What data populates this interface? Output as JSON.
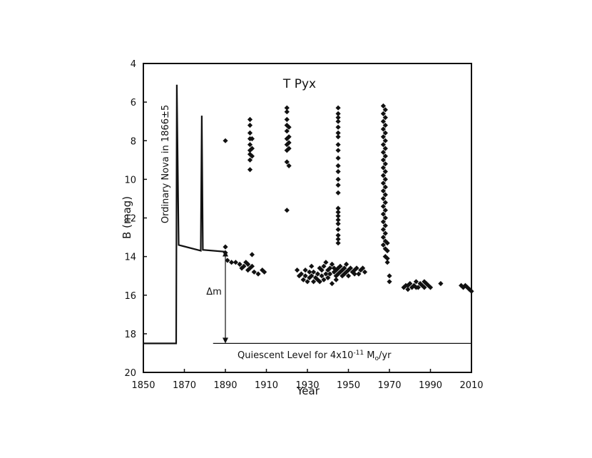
{
  "chart_data": {
    "type": "scatter",
    "title": "T Pyx",
    "xlabel": "Year",
    "ylabel": "B (mag)",
    "xlim": [
      1850,
      2010
    ],
    "ylim": [
      20,
      4
    ],
    "y_inverted": true,
    "grid": false,
    "x_ticks": [
      1850,
      1870,
      1890,
      1910,
      1930,
      1950,
      1970,
      1990,
      2010
    ],
    "y_ticks": [
      4,
      6,
      8,
      10,
      12,
      14,
      16,
      18,
      20
    ],
    "marker_color": "#111111",
    "annotations": {
      "vertical_note": "Ordinary Nova in 1866±5",
      "delta_label": "Δm",
      "quiescent_prefix": "Quiescent Level for 4x10",
      "quiescent_exp": "-11",
      "quiescent_mid": " M",
      "quiescent_sub": "o",
      "quiescent_suffix": "/yr"
    },
    "quiescent_level": 18.5,
    "quiescent_range": [
      1884,
      2010
    ],
    "delta_m_arrow": {
      "x": 1890,
      "y_top": 13.7,
      "y_bottom": 18.5
    },
    "model_curve": [
      [
        1850,
        18.5
      ],
      [
        1866,
        18.5
      ],
      [
        1866.3,
        5.1
      ],
      [
        1867.2,
        13.4
      ],
      [
        1878,
        13.7
      ],
      [
        1878.5,
        6.7
      ],
      [
        1879,
        13.65
      ],
      [
        1890,
        13.75
      ]
    ],
    "points": [
      [
        1890,
        8.0
      ],
      [
        1890,
        13.5
      ],
      [
        1890,
        13.8
      ],
      [
        1891,
        14.2
      ],
      [
        1893,
        14.3
      ],
      [
        1895,
        14.3
      ],
      [
        1897,
        14.4
      ],
      [
        1898,
        14.6
      ],
      [
        1899,
        14.5
      ],
      [
        1900,
        14.3
      ],
      [
        1901,
        14.4
      ],
      [
        1901,
        14.7
      ],
      [
        1902,
        14.6
      ],
      [
        1903,
        14.5
      ],
      [
        1904,
        14.8
      ],
      [
        1906,
        14.9
      ],
      [
        1908,
        14.7
      ],
      [
        1909,
        14.8
      ],
      [
        1902,
        6.9
      ],
      [
        1902,
        7.2
      ],
      [
        1902,
        7.6
      ],
      [
        1902,
        7.9
      ],
      [
        1902,
        8.2
      ],
      [
        1902,
        8.5
      ],
      [
        1902,
        8.7
      ],
      [
        1902,
        9.0
      ],
      [
        1902,
        9.5
      ],
      [
        1903,
        7.9
      ],
      [
        1903,
        8.4
      ],
      [
        1903,
        8.8
      ],
      [
        1903,
        13.9
      ],
      [
        1920,
        6.3
      ],
      [
        1920,
        6.5
      ],
      [
        1920,
        6.9
      ],
      [
        1920,
        7.2
      ],
      [
        1920,
        7.5
      ],
      [
        1920,
        7.9
      ],
      [
        1920,
        8.2
      ],
      [
        1920,
        8.5
      ],
      [
        1920,
        9.1
      ],
      [
        1920,
        11.6
      ],
      [
        1921,
        7.3
      ],
      [
        1921,
        7.8
      ],
      [
        1921,
        8.1
      ],
      [
        1921,
        8.4
      ],
      [
        1921,
        9.3
      ],
      [
        1945,
        6.3
      ],
      [
        1945,
        6.6
      ],
      [
        1945,
        6.8
      ],
      [
        1945,
        7.0
      ],
      [
        1945,
        7.3
      ],
      [
        1945,
        7.6
      ],
      [
        1945,
        7.8
      ],
      [
        1945,
        8.2
      ],
      [
        1945,
        8.5
      ],
      [
        1945,
        8.9
      ],
      [
        1945,
        9.3
      ],
      [
        1945,
        9.6
      ],
      [
        1945,
        10.0
      ],
      [
        1945,
        10.3
      ],
      [
        1945,
        10.7
      ],
      [
        1945,
        11.5
      ],
      [
        1945,
        11.7
      ],
      [
        1945,
        11.9
      ],
      [
        1945,
        12.1
      ],
      [
        1945,
        12.3
      ],
      [
        1945,
        12.6
      ],
      [
        1945,
        12.9
      ],
      [
        1945,
        13.1
      ],
      [
        1945,
        13.3
      ],
      [
        1925,
        14.7
      ],
      [
        1926,
        15.0
      ],
      [
        1927,
        14.9
      ],
      [
        1928,
        15.2
      ],
      [
        1929,
        14.7
      ],
      [
        1929,
        15.0
      ],
      [
        1930,
        15.3
      ],
      [
        1931,
        14.8
      ],
      [
        1931,
        15.1
      ],
      [
        1932,
        15.0
      ],
      [
        1933,
        14.8
      ],
      [
        1933,
        15.3
      ],
      [
        1934,
        15.1
      ],
      [
        1935,
        14.9
      ],
      [
        1935,
        15.2
      ],
      [
        1936,
        14.6
      ],
      [
        1937,
        15.0
      ],
      [
        1937,
        14.7
      ],
      [
        1938,
        15.2
      ],
      [
        1938,
        14.5
      ],
      [
        1939,
        14.9
      ],
      [
        1940,
        14.7
      ],
      [
        1940,
        15.1
      ],
      [
        1941,
        14.6
      ],
      [
        1941,
        14.9
      ],
      [
        1942,
        15.4
      ],
      [
        1942,
        14.4
      ],
      [
        1943,
        14.8
      ],
      [
        1943,
        14.6
      ],
      [
        1944,
        14.7
      ],
      [
        1944,
        15.0
      ],
      [
        1945,
        14.6
      ],
      [
        1945,
        14.9
      ],
      [
        1946,
        14.5
      ],
      [
        1946,
        14.8
      ],
      [
        1947,
        14.7
      ],
      [
        1947,
        15.0
      ],
      [
        1948,
        14.6
      ],
      [
        1948,
        14.9
      ],
      [
        1949,
        14.8
      ],
      [
        1950,
        14.7
      ],
      [
        1950,
        15.0
      ],
      [
        1951,
        14.6
      ],
      [
        1952,
        14.8
      ],
      [
        1953,
        14.7
      ],
      [
        1954,
        14.6
      ],
      [
        1955,
        14.9
      ],
      [
        1956,
        14.7
      ],
      [
        1957,
        14.6
      ],
      [
        1958,
        14.8
      ],
      [
        1932,
        14.5
      ],
      [
        1936,
        15.3
      ],
      [
        1939,
        14.3
      ],
      [
        1944,
        15.2
      ],
      [
        1949,
        14.4
      ],
      [
        1953,
        14.9
      ],
      [
        1967,
        6.2
      ],
      [
        1967,
        6.6
      ],
      [
        1967,
        7.0
      ],
      [
        1967,
        7.4
      ],
      [
        1967,
        7.8
      ],
      [
        1967,
        8.2
      ],
      [
        1967,
        8.6
      ],
      [
        1967,
        9.0
      ],
      [
        1967,
        9.4
      ],
      [
        1967,
        9.8
      ],
      [
        1967,
        10.2
      ],
      [
        1967,
        10.6
      ],
      [
        1967,
        11.0
      ],
      [
        1967,
        11.4
      ],
      [
        1967,
        11.8
      ],
      [
        1967,
        12.2
      ],
      [
        1967,
        12.6
      ],
      [
        1967,
        13.0
      ],
      [
        1967,
        13.4
      ],
      [
        1968,
        6.4
      ],
      [
        1968,
        6.8
      ],
      [
        1968,
        7.2
      ],
      [
        1968,
        7.6
      ],
      [
        1968,
        8.0
      ],
      [
        1968,
        8.4
      ],
      [
        1968,
        8.8
      ],
      [
        1968,
        9.2
      ],
      [
        1968,
        9.6
      ],
      [
        1968,
        10.0
      ],
      [
        1968,
        10.4
      ],
      [
        1968,
        10.8
      ],
      [
        1968,
        11.2
      ],
      [
        1968,
        11.6
      ],
      [
        1968,
        12.0
      ],
      [
        1968,
        12.4
      ],
      [
        1968,
        12.8
      ],
      [
        1968,
        13.2
      ],
      [
        1968,
        13.6
      ],
      [
        1968,
        14.0
      ],
      [
        1969,
        13.3
      ],
      [
        1969,
        13.7
      ],
      [
        1969,
        14.1
      ],
      [
        1969,
        14.3
      ],
      [
        1970,
        15.0
      ],
      [
        1970,
        15.3
      ],
      [
        1977,
        15.6
      ],
      [
        1978,
        15.5
      ],
      [
        1979,
        15.7
      ],
      [
        1980,
        15.4
      ],
      [
        1981,
        15.6
      ],
      [
        1982,
        15.5
      ],
      [
        1983,
        15.3
      ],
      [
        1984,
        15.6
      ],
      [
        1985,
        15.4
      ],
      [
        1986,
        15.5
      ],
      [
        1987,
        15.6
      ],
      [
        1988,
        15.4
      ],
      [
        1989,
        15.5
      ],
      [
        1990,
        15.6
      ],
      [
        1979,
        15.5
      ],
      [
        1983,
        15.6
      ],
      [
        1987,
        15.3
      ],
      [
        1995,
        15.4
      ],
      [
        2005,
        15.5
      ],
      [
        2006,
        15.6
      ],
      [
        2007,
        15.5
      ],
      [
        2008,
        15.6
      ],
      [
        2009,
        15.7
      ],
      [
        2010,
        15.8
      ]
    ]
  }
}
